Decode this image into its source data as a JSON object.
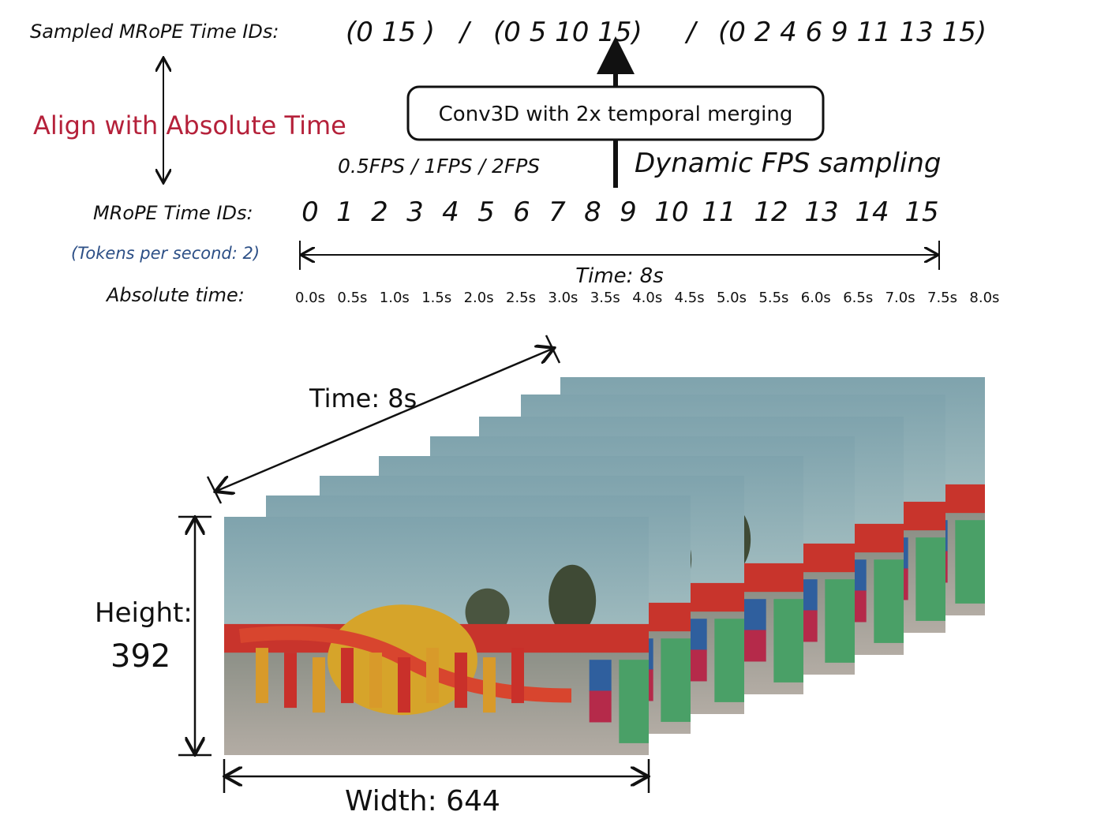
{
  "top": {
    "sampled_label": "Sampled MRoPE Time IDs:",
    "groups": [
      "(0  15 )",
      "/",
      "(0  5  10  15)",
      "/",
      "(0  2  4  6  9  11  13  15)"
    ]
  },
  "align_label": "Align with Absolute Time",
  "conv_box": "Conv3D with 2x temporal merging",
  "fps_options": "0.5FPS  /  1FPS  /   2FPS",
  "dynamic_fps": "Dynamic FPS sampling",
  "mrope": {
    "label": "MRoPE Time IDs:",
    "ids": [
      "0",
      "1",
      "2",
      "3",
      "4",
      "5",
      "6",
      "7",
      "8",
      "9",
      "10",
      "11",
      "12",
      "13",
      "14",
      "15"
    ]
  },
  "tokens_per_second": "(Tokens per second: 2)",
  "time_span": "Time: 8s",
  "absolute": {
    "label": "Absolute time:",
    "times": [
      "0.0s",
      "0.5s",
      "1.0s",
      "1.5s",
      "2.0s",
      "2.5s",
      "3.0s",
      "3.5s",
      "4.0s",
      "4.5s",
      "5.0s",
      "5.5s",
      "6.0s",
      "6.5s",
      "7.0s",
      "7.5s",
      "8.0s"
    ]
  },
  "video": {
    "time_label": "Time: 8s",
    "height_label": "Height:",
    "height_value": "392",
    "width_label": "Width: 644",
    "frame_count": 8
  },
  "colors": {
    "accent_red": "#b5213a",
    "accent_blue": "#2c4f86",
    "sky": "#86a9b2"
  }
}
